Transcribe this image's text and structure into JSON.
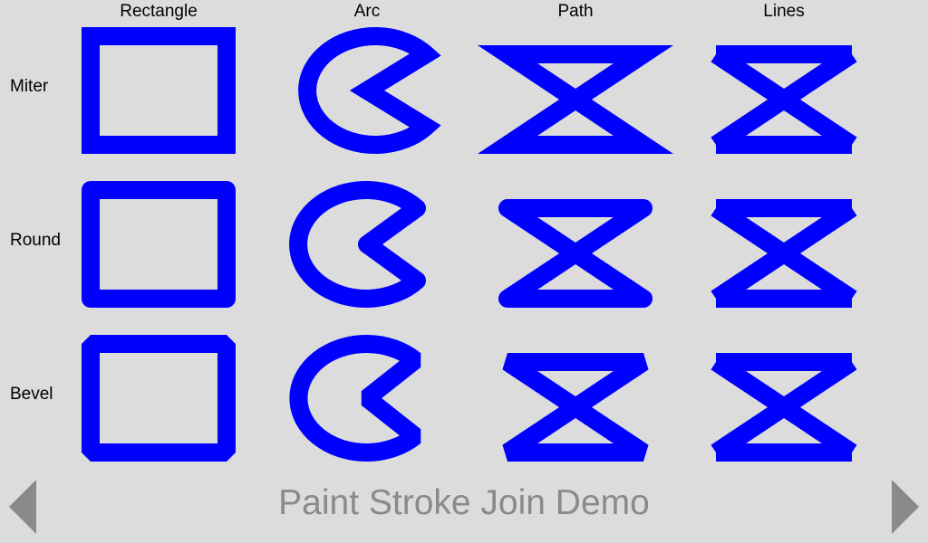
{
  "demo": {
    "title": "Paint Stroke Join Demo",
    "stroke_color": "#0000ff",
    "arrow_color": "#8a8a8a"
  },
  "columns": [
    "Rectangle",
    "Arc",
    "Path",
    "Lines"
  ],
  "rows": [
    "Miter",
    "Round",
    "Bevel"
  ],
  "navigation": {
    "previous_icon": "triangle-left-icon",
    "next_icon": "triangle-right-icon"
  }
}
